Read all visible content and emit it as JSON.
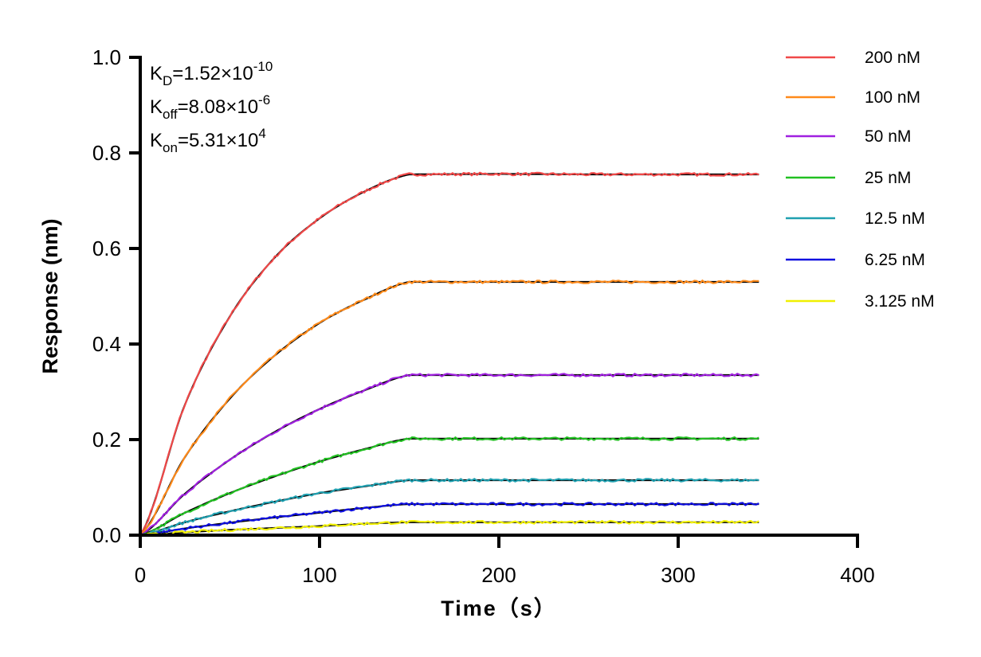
{
  "chart_data": {
    "type": "line",
    "xlabel": "Time（s）",
    "ylabel": "Response (nm)",
    "xlim": [
      0,
      400
    ],
    "ylim": [
      0,
      1.0
    ],
    "xticks": [
      "0",
      "100",
      "200",
      "300",
      "400"
    ],
    "yticks": [
      "0.0",
      "0.2",
      "0.4",
      "0.6",
      "0.8",
      "1.0"
    ],
    "grid": false,
    "legend_position": "top-right",
    "annotations": [
      {
        "symbol": "K",
        "sub": "D",
        "value": "=1.52×10",
        "exp": "-10"
      },
      {
        "symbol": "K",
        "sub": "off",
        "value": "=8.08×10",
        "exp": "-6"
      },
      {
        "symbol": "K",
        "sub": "on",
        "value": "=5.31×10",
        "exp": "4"
      }
    ],
    "fit_color": "#000000",
    "x": [
      0,
      25,
      50,
      75,
      100,
      125,
      150,
      200,
      250,
      300,
      345
    ],
    "series": [
      {
        "name": "200 nM",
        "color": "#f04848",
        "values": [
          0,
          0.274,
          0.458,
          0.581,
          0.663,
          0.719,
          0.755,
          0.756,
          0.755,
          0.755,
          0.755
        ]
      },
      {
        "name": "100 nM",
        "color": "#ff8a1a",
        "values": [
          0,
          0.164,
          0.286,
          0.376,
          0.444,
          0.493,
          0.53,
          0.53,
          0.53,
          0.53,
          0.53
        ]
      },
      {
        "name": "50 nM",
        "color": "#a020e0",
        "values": [
          0,
          0.087,
          0.158,
          0.216,
          0.264,
          0.303,
          0.335,
          0.335,
          0.335,
          0.335,
          0.335
        ]
      },
      {
        "name": "25 nM",
        "color": "#22c022",
        "values": [
          0,
          0.047,
          0.088,
          0.123,
          0.154,
          0.18,
          0.202,
          0.202,
          0.202,
          0.202,
          0.202
        ]
      },
      {
        "name": "12.5 nM",
        "color": "#20a0b0",
        "values": [
          0,
          0.027,
          0.05,
          0.07,
          0.088,
          0.102,
          0.115,
          0.115,
          0.115,
          0.115,
          0.115
        ]
      },
      {
        "name": "6.25 nM",
        "color": "#1010e0",
        "values": [
          0,
          0.014,
          0.026,
          0.037,
          0.047,
          0.057,
          0.065,
          0.065,
          0.065,
          0.065,
          0.065
        ]
      },
      {
        "name": "3.125 nM",
        "color": "#f0f000",
        "values": [
          0,
          0.006,
          0.011,
          0.015,
          0.019,
          0.024,
          0.027,
          0.027,
          0.027,
          0.027,
          0.027
        ]
      }
    ]
  }
}
